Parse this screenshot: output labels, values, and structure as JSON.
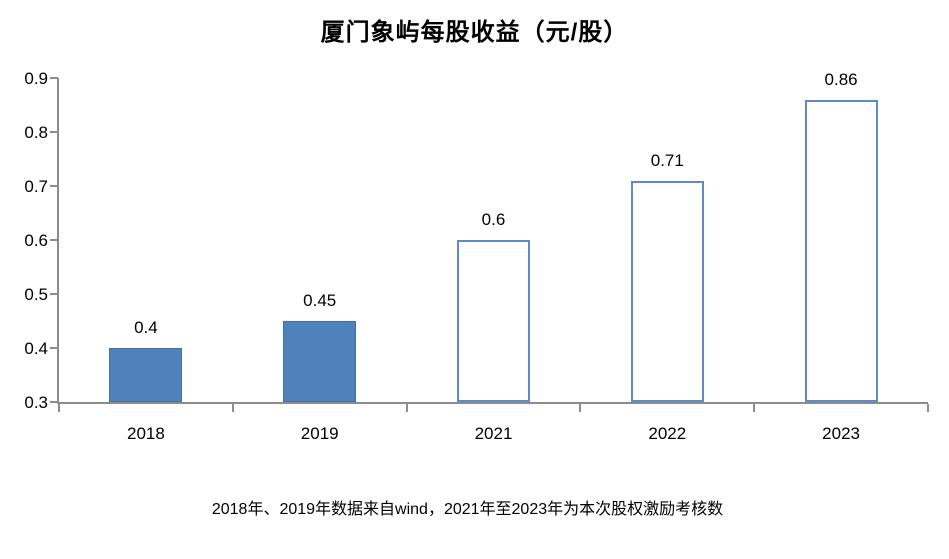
{
  "title": "厦门象屿每股收益（元/股）",
  "footnote": "2018年、2019年数据来自wind，2021年至2023年为本次股权激励考核数",
  "colors": {
    "solid_bar_fill": "#4f81bd",
    "solid_bar_border": "#44719f",
    "outline_bar_border": "#5b8cc9",
    "outline_bar_fill": "#ffffff",
    "axis_line": "#8c8c8c",
    "text": "#000000",
    "background": "#ffffff"
  },
  "chart_data": {
    "type": "bar",
    "title": "厦门象屿每股收益（元/股）",
    "categories": [
      "2018",
      "2019",
      "2021",
      "2022",
      "2023"
    ],
    "values": [
      0.4,
      0.45,
      0.6,
      0.71,
      0.86
    ],
    "data_labels": [
      "0.4",
      "0.45",
      "0.6",
      "0.71",
      "0.86"
    ],
    "bar_styles": [
      "solid",
      "solid",
      "outline",
      "outline",
      "outline"
    ],
    "xlabel": "",
    "ylabel": "",
    "ylim": [
      0.3,
      0.9
    ],
    "ytick_labels_top_to_bottom": [
      "0.9",
      "0.8",
      "0.7",
      "0.6",
      "0.5",
      "0.4",
      "0.3"
    ],
    "grid": false,
    "legend": "none",
    "annotation": "2018年、2019年数据来自wind，2021年至2023年为本次股权激励考核数"
  }
}
